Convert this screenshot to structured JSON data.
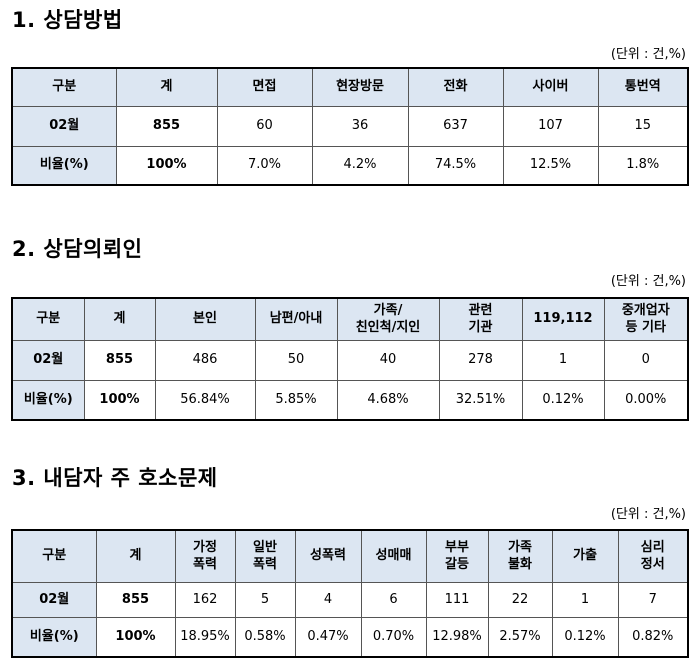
{
  "sections": [
    {
      "title": "1. 상담방법",
      "unit": "(단위 : 건,%)",
      "headers": [
        "구분",
        "계",
        "면접",
        "현장방문",
        "전화",
        "사이버",
        "통번역"
      ],
      "count_row": [
        "02월",
        "855",
        "60",
        "36",
        "637",
        "107",
        "15"
      ],
      "ratio_row": [
        "비율(%)",
        "100%",
        "7.0%",
        "4.2%",
        "74.5%",
        "12.5%",
        "1.8%"
      ]
    },
    {
      "title": "2. 상담의뢰인",
      "unit": "(단위 : 건,%)",
      "headers": [
        "구분",
        "계",
        "본인",
        "남편/아내",
        "가족/\n친인척/지인",
        "관련\n기관",
        "119,112",
        "중개업자\n등 기타"
      ],
      "count_row": [
        "02월",
        "855",
        "486",
        "50",
        "40",
        "278",
        "1",
        "0"
      ],
      "ratio_row": [
        "비율(%)",
        "100%",
        "56.84%",
        "5.85%",
        "4.68%",
        "32.51%",
        "0.12%",
        "0.00%"
      ]
    },
    {
      "title": "3. 내담자 주 호소문제",
      "unit": "(단위 : 건,%)",
      "headers": [
        "구분",
        "계",
        "가정\n폭력",
        "일반\n폭력",
        "성폭력",
        "성매매",
        "부부\n갈등",
        "가족\n불화",
        "가출",
        "심리\n정서"
      ],
      "count_row": [
        "02월",
        "855",
        "162",
        "5",
        "4",
        "6",
        "111",
        "22",
        "1",
        "7"
      ],
      "ratio_row": [
        "비율(%)",
        "100%",
        "18.95%",
        "0.58%",
        "0.47%",
        "0.70%",
        "12.98%",
        "2.57%",
        "0.12%",
        "0.82%"
      ]
    }
  ]
}
